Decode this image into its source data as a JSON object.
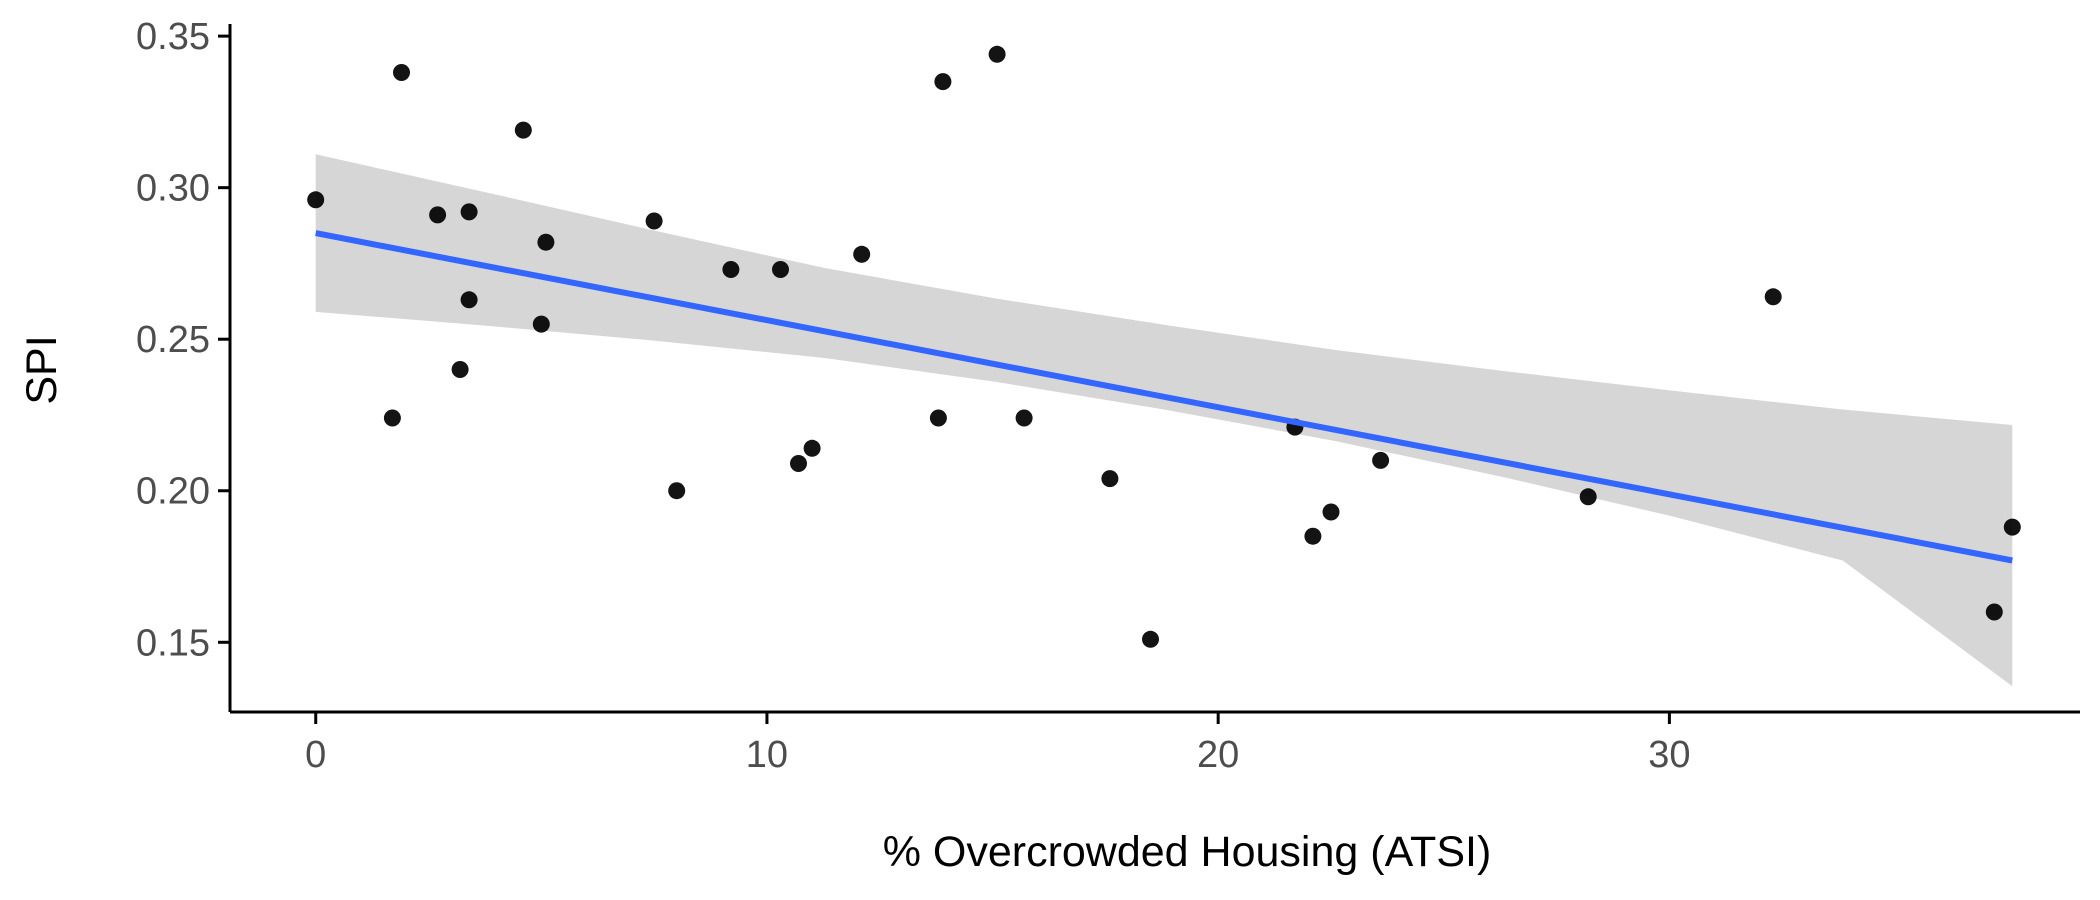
{
  "chart_data": {
    "type": "scatter",
    "title": "",
    "xlabel": "% Overcrowded Housing (ATSI)",
    "ylabel": "SPI",
    "xlim": [
      -1.9,
      39.1
    ],
    "ylim": [
      0.127,
      0.354
    ],
    "x_ticks": [
      0,
      10,
      20,
      30
    ],
    "x_tick_labels": [
      "0",
      "10",
      "20",
      "30"
    ],
    "y_ticks": [
      0.15,
      0.2,
      0.25,
      0.3,
      0.35
    ],
    "y_tick_labels": [
      "0.15",
      "0.20",
      "0.25",
      "0.30",
      "0.35"
    ],
    "grid": false,
    "legend": "none",
    "points": [
      {
        "x": 0.0,
        "y": 0.296
      },
      {
        "x": 1.7,
        "y": 0.224
      },
      {
        "x": 1.9,
        "y": 0.338
      },
      {
        "x": 2.7,
        "y": 0.291
      },
      {
        "x": 3.2,
        "y": 0.24
      },
      {
        "x": 3.4,
        "y": 0.292
      },
      {
        "x": 3.4,
        "y": 0.263
      },
      {
        "x": 4.6,
        "y": 0.319
      },
      {
        "x": 5.0,
        "y": 0.255
      },
      {
        "x": 5.1,
        "y": 0.282
      },
      {
        "x": 7.5,
        "y": 0.289
      },
      {
        "x": 8.0,
        "y": 0.2
      },
      {
        "x": 9.2,
        "y": 0.273
      },
      {
        "x": 10.3,
        "y": 0.273
      },
      {
        "x": 10.7,
        "y": 0.209
      },
      {
        "x": 11.0,
        "y": 0.214
      },
      {
        "x": 12.1,
        "y": 0.278
      },
      {
        "x": 13.8,
        "y": 0.224
      },
      {
        "x": 13.9,
        "y": 0.335
      },
      {
        "x": 15.1,
        "y": 0.344
      },
      {
        "x": 15.7,
        "y": 0.224
      },
      {
        "x": 17.6,
        "y": 0.204
      },
      {
        "x": 18.5,
        "y": 0.151
      },
      {
        "x": 21.7,
        "y": 0.221
      },
      {
        "x": 22.1,
        "y": 0.185
      },
      {
        "x": 22.5,
        "y": 0.193
      },
      {
        "x": 23.6,
        "y": 0.21
      },
      {
        "x": 28.2,
        "y": 0.198
      },
      {
        "x": 32.3,
        "y": 0.264
      },
      {
        "x": 37.2,
        "y": 0.16
      },
      {
        "x": 37.6,
        "y": 0.188
      }
    ],
    "fit_line": {
      "method": "linear",
      "x": [
        0,
        37.6
      ],
      "y": [
        0.285,
        0.177
      ],
      "ci_upper": [
        0.311,
        0.2985,
        0.2858,
        0.2735,
        0.2635,
        0.2548,
        0.2465,
        0.2395,
        0.233,
        0.2268,
        0.2217
      ],
      "ci_lower": [
        0.259,
        0.2545,
        0.2495,
        0.2438,
        0.236,
        0.2268,
        0.2165,
        0.2045,
        0.1915,
        0.177,
        0.1355
      ],
      "ci_x": [
        0,
        3.76,
        7.52,
        11.28,
        15.04,
        18.8,
        22.56,
        26.32,
        30.08,
        33.84,
        37.6
      ],
      "color": "#3366ff",
      "ci_color": "#d6d6d6"
    },
    "point_color": "#000000"
  }
}
